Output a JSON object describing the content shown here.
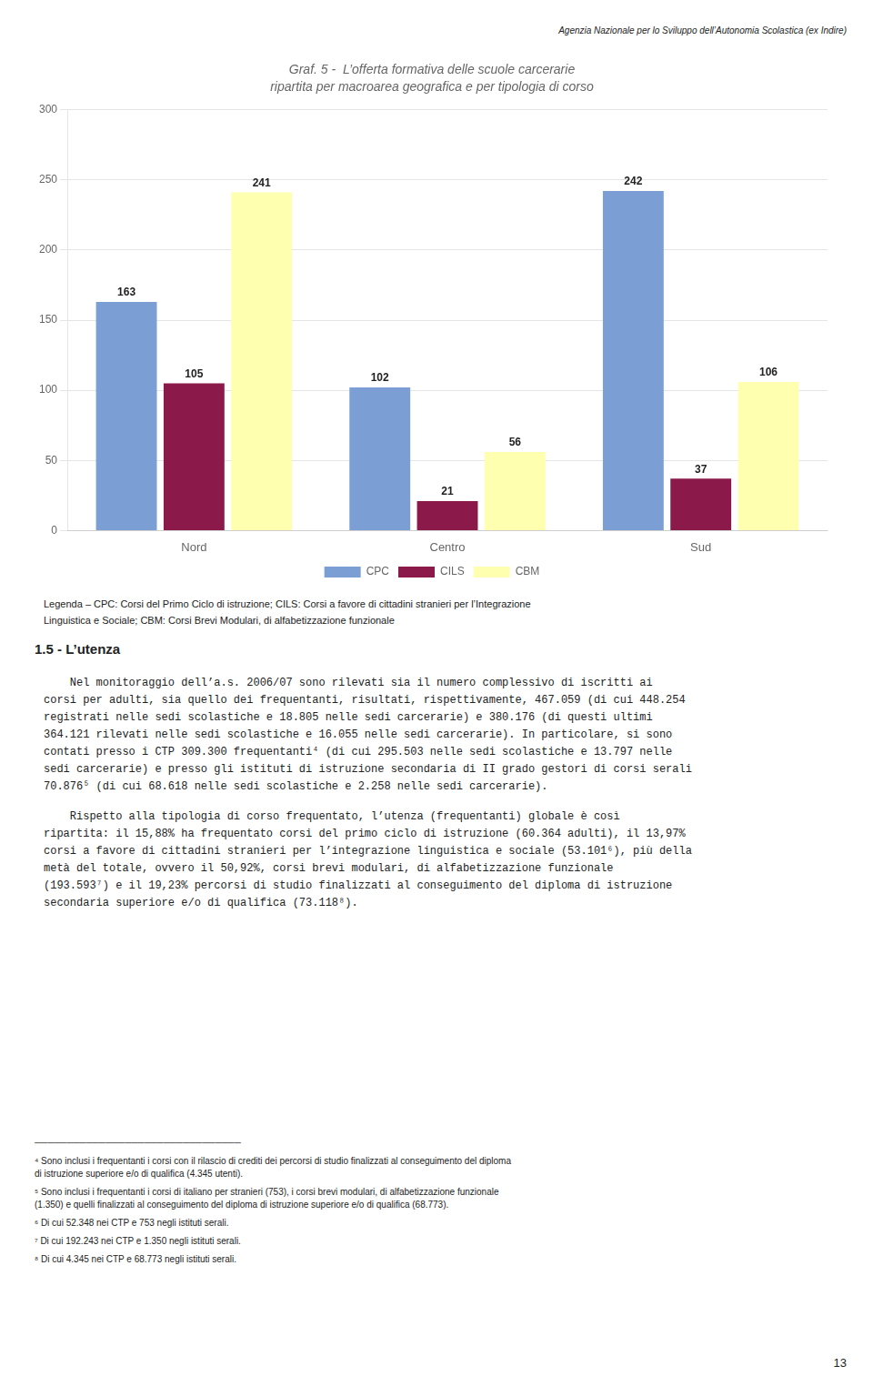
{
  "header": "Agenzia Nazionale per lo Sviluppo dell’Autonomia Scolastica (ex Indire)",
  "chart_data": {
    "type": "bar",
    "title": "Graf. 5 -  L’offerta formativa delle scuole carcerarie",
    "subtitle": "ripartita per macroarea geografica e per tipologia di corso",
    "categories": [
      "Nord",
      "Centro",
      "Sud"
    ],
    "series": [
      {
        "name": "CPC",
        "color": "#7B9FD4",
        "values": [
          163,
          102,
          242
        ]
      },
      {
        "name": "CILS",
        "color": "#8B1A4A",
        "values": [
          105,
          21,
          37
        ]
      },
      {
        "name": "CBM",
        "color": "#FFFFB0",
        "values": [
          241,
          56,
          106
        ]
      }
    ],
    "ylim": [
      0,
      300
    ],
    "yticks": [
      0,
      50,
      100,
      150,
      200,
      250,
      300
    ],
    "grid": true,
    "legend": "bottom",
    "data_labels": true
  },
  "legend_text": [
    "Legenda – CPC: Corsi del Primo Ciclo di istruzione; CILS: Corsi a favore di cittadini stranieri per l’Integrazione",
    "Linguistica e Sociale; CBM: Corsi Brevi Modulari, di alfabetizzazione funzionale"
  ],
  "section_heading": "1.5 - L’utenza",
  "paragraphs": [
    [
      "    Nel monitoraggio dell’a.s. 2006/07 sono rilevati sia il numero complessivo di iscritti ai",
      "corsi per adulti, sia quello dei frequentanti, risultati, rispettivamente, 467.059 (di cui 448.254",
      "registrati nelle sedi scolastiche e 18.805 nelle sedi carcerarie) e 380.176 (di questi ultimi",
      "364.121 rilevati nelle sedi scolastiche e 16.055 nelle sedi carcerarie). In particolare, si sono",
      "contati presso i CTP 309.300 frequentanti⁴ (di cui 295.503 nelle sedi scolastiche e 13.797 nelle",
      "sedi carcerarie) e presso gli istituti di istruzione secondaria di II grado gestori di corsi serali",
      "70.876⁵ (di cui 68.618 nelle sedi scolastiche e 2.258 nelle sedi carcerarie)."
    ],
    [
      "    Rispetto alla tipologia di corso frequentato, l’utenza (frequentanti) globale è così",
      "ripartita: il 15,88% ha frequentato corsi del primo ciclo di istruzione (60.364 adulti), il 13,97%",
      "corsi a favore di cittadini stranieri per l’integrazione linguistica e sociale (53.101⁶), più della",
      "metà del totale, ovvero il 50,92%, corsi brevi modulari, di alfabetizzazione funzionale",
      "(193.593⁷) e il 19,23% percorsi di studio finalizzati al conseguimento del diploma di istruzione",
      "secondaria superiore e/o di qualifica (73.118⁸)."
    ]
  ],
  "footnote_separator": "────────────────────────────────",
  "footnotes": [
    [
      "⁴ Sono inclusi i frequentanti i corsi con il rilascio di crediti dei percorsi di studio finalizzati al conseguimento del diploma",
      "di istruzione superiore e/o di qualifica (4.345 utenti)."
    ],
    [
      "⁵ Sono inclusi i frequentanti i corsi di italiano per stranieri (753), i corsi brevi modulari, di alfabetizzazione funzionale",
      "(1.350) e quelli finalizzati al conseguimento del diploma di istruzione superiore e/o di qualifica (68.773)."
    ],
    [
      "⁶ Di cui 52.348 nei CTP e 753 negli istituti serali."
    ],
    [
      "⁷ Di cui 192.243 nei CTP e 1.350 negli istituti serali."
    ],
    [
      "⁸ Di cui 4.345 nei CTP e 68.773 negli istituti serali."
    ]
  ],
  "page_number": "13"
}
